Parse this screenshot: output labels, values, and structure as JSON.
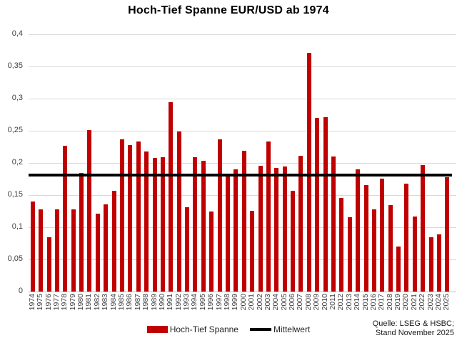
{
  "title": "Hoch-Tief Spanne EUR/USD ab 1974",
  "legend": {
    "bar_label": "Hoch-Tief Spanne",
    "line_label": "Mittelwert"
  },
  "source": {
    "line1": "Quelle: LSEG & HSBC;",
    "line2": "Stand November 2025"
  },
  "colors": {
    "bar": "#C00000",
    "mean_line": "#000000",
    "grid": "#D9D9D9",
    "axis": "#BFBFBF"
  },
  "chart_data": {
    "type": "bar",
    "title": "Hoch-Tief Spanne EUR/USD ab 1974",
    "xlabel": "",
    "ylabel": "",
    "ylim": [
      0,
      0.4
    ],
    "grid": "horizontal",
    "legend_position": "bottom",
    "yticks": [
      {
        "value": 0,
        "label": "0"
      },
      {
        "value": 0.05,
        "label": "0,05"
      },
      {
        "value": 0.1,
        "label": "0,1"
      },
      {
        "value": 0.15,
        "label": "0,15"
      },
      {
        "value": 0.2,
        "label": "0,2"
      },
      {
        "value": 0.25,
        "label": "0,25"
      },
      {
        "value": 0.3,
        "label": "0,3"
      },
      {
        "value": 0.35,
        "label": "0,35"
      },
      {
        "value": 0.4,
        "label": "0,4"
      }
    ],
    "categories": [
      "1974",
      "1975",
      "1976",
      "1977",
      "1978",
      "1979",
      "1980",
      "1981",
      "1982",
      "1983",
      "1984",
      "1985",
      "1986",
      "1987",
      "1988",
      "1989",
      "1990",
      "1991",
      "1992",
      "1993",
      "1994",
      "1995",
      "1996",
      "1997",
      "1998",
      "1999",
      "2000",
      "2001",
      "2002",
      "2003",
      "2004",
      "2005",
      "2006",
      "2007",
      "2008",
      "2009",
      "2010",
      "2011",
      "2012",
      "2013",
      "2014",
      "2015",
      "2016",
      "2017",
      "2018",
      "2019",
      "2020",
      "2021",
      "2022",
      "2023",
      "2024",
      "2025"
    ],
    "series": [
      {
        "name": "Hoch-Tief Spanne",
        "color": "#C00000",
        "values": [
          0.14,
          0.128,
          0.084,
          0.128,
          0.227,
          0.128,
          0.184,
          0.251,
          0.121,
          0.136,
          0.157,
          0.237,
          0.228,
          0.233,
          0.218,
          0.208,
          0.209,
          0.294,
          0.249,
          0.131,
          0.209,
          0.203,
          0.125,
          0.237,
          0.18,
          0.19,
          0.219,
          0.126,
          0.196,
          0.233,
          0.192,
          0.195,
          0.157,
          0.211,
          0.371,
          0.27,
          0.271,
          0.21,
          0.146,
          0.116,
          0.19,
          0.166,
          0.128,
          0.176,
          0.135,
          0.07,
          0.168,
          0.117,
          0.197,
          0.084,
          0.089,
          0.178
        ]
      }
    ],
    "reference_line": {
      "name": "Mittelwert",
      "value": 0.1815,
      "color": "#000000"
    }
  }
}
